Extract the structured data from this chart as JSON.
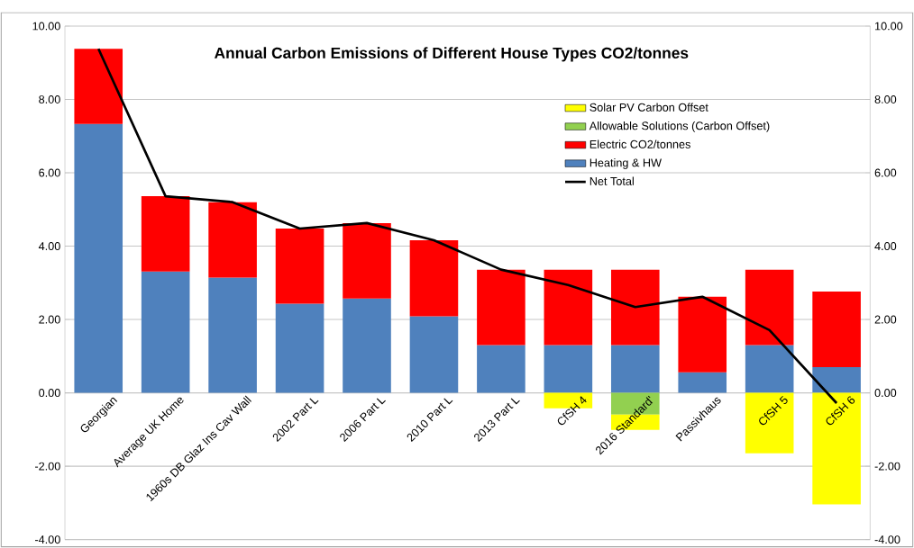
{
  "chart_data": {
    "type": "bar",
    "stacked": true,
    "title": "Annual Carbon Emissions of Different House Types CO2/tonnes",
    "categories": [
      "Georgian",
      "Average UK Home",
      "1960s DB Glaz Ins Cav Wall",
      "2002 Part L",
      "2006 Part L",
      "2010 Part L",
      "2013 Part L",
      "CfSH 4",
      "2016 Standard'",
      "Passivhaus",
      "CfSH 5",
      "CfSH 6"
    ],
    "series": [
      {
        "name": "Heating & HW",
        "color": "#4f81bd",
        "values": [
          7.33,
          3.31,
          3.14,
          2.43,
          2.57,
          2.09,
          1.3,
          1.3,
          1.3,
          0.56,
          1.3,
          0.7
        ]
      },
      {
        "name": "Electric CO2/tonnes",
        "color": "#ff0000",
        "values": [
          2.05,
          2.05,
          2.06,
          2.05,
          2.06,
          2.07,
          2.06,
          2.06,
          2.06,
          2.06,
          2.06,
          2.06
        ]
      },
      {
        "name": "Allowable Solutions (Carbon Offset)",
        "color": "#92d050",
        "values": [
          null,
          null,
          null,
          null,
          null,
          null,
          null,
          null,
          -0.59,
          null,
          null,
          null
        ]
      },
      {
        "name": "Solar PV Carbon Offset",
        "color": "#ffff00",
        "values": [
          null,
          null,
          null,
          null,
          null,
          null,
          null,
          -0.42,
          -0.42,
          null,
          -1.65,
          -3.04
        ]
      },
      {
        "name": "Net Total",
        "type": "line",
        "color": "#000000",
        "values": [
          9.38,
          5.36,
          5.2,
          4.48,
          4.63,
          4.16,
          3.36,
          2.94,
          2.34,
          2.62,
          1.71,
          -0.28
        ]
      }
    ],
    "ylim": [
      -4,
      10
    ],
    "yticks": [
      {
        "value": -4,
        "label": "-4.00"
      },
      {
        "value": -2,
        "label": "-2.00"
      },
      {
        "value": 0,
        "label": "0.00"
      },
      {
        "value": 2,
        "label": "2.00"
      },
      {
        "value": 4,
        "label": "4.00"
      },
      {
        "value": 6,
        "label": "6.00"
      },
      {
        "value": 8,
        "label": "8.00"
      },
      {
        "value": 10,
        "label": "10.00"
      }
    ],
    "y2lim": [
      -4,
      10
    ],
    "y2ticks": [
      {
        "value": -4,
        "label": "-4.00"
      },
      {
        "value": -2,
        "label": "-2.00"
      },
      {
        "value": 0,
        "label": "0.00"
      },
      {
        "value": 2,
        "label": "2.00"
      },
      {
        "value": 4,
        "label": "4.00"
      },
      {
        "value": 6,
        "label": "6.00"
      },
      {
        "value": 8,
        "label": "8.00"
      },
      {
        "value": 10,
        "label": "10.00"
      }
    ],
    "grid": "y",
    "legend": "top right"
  }
}
